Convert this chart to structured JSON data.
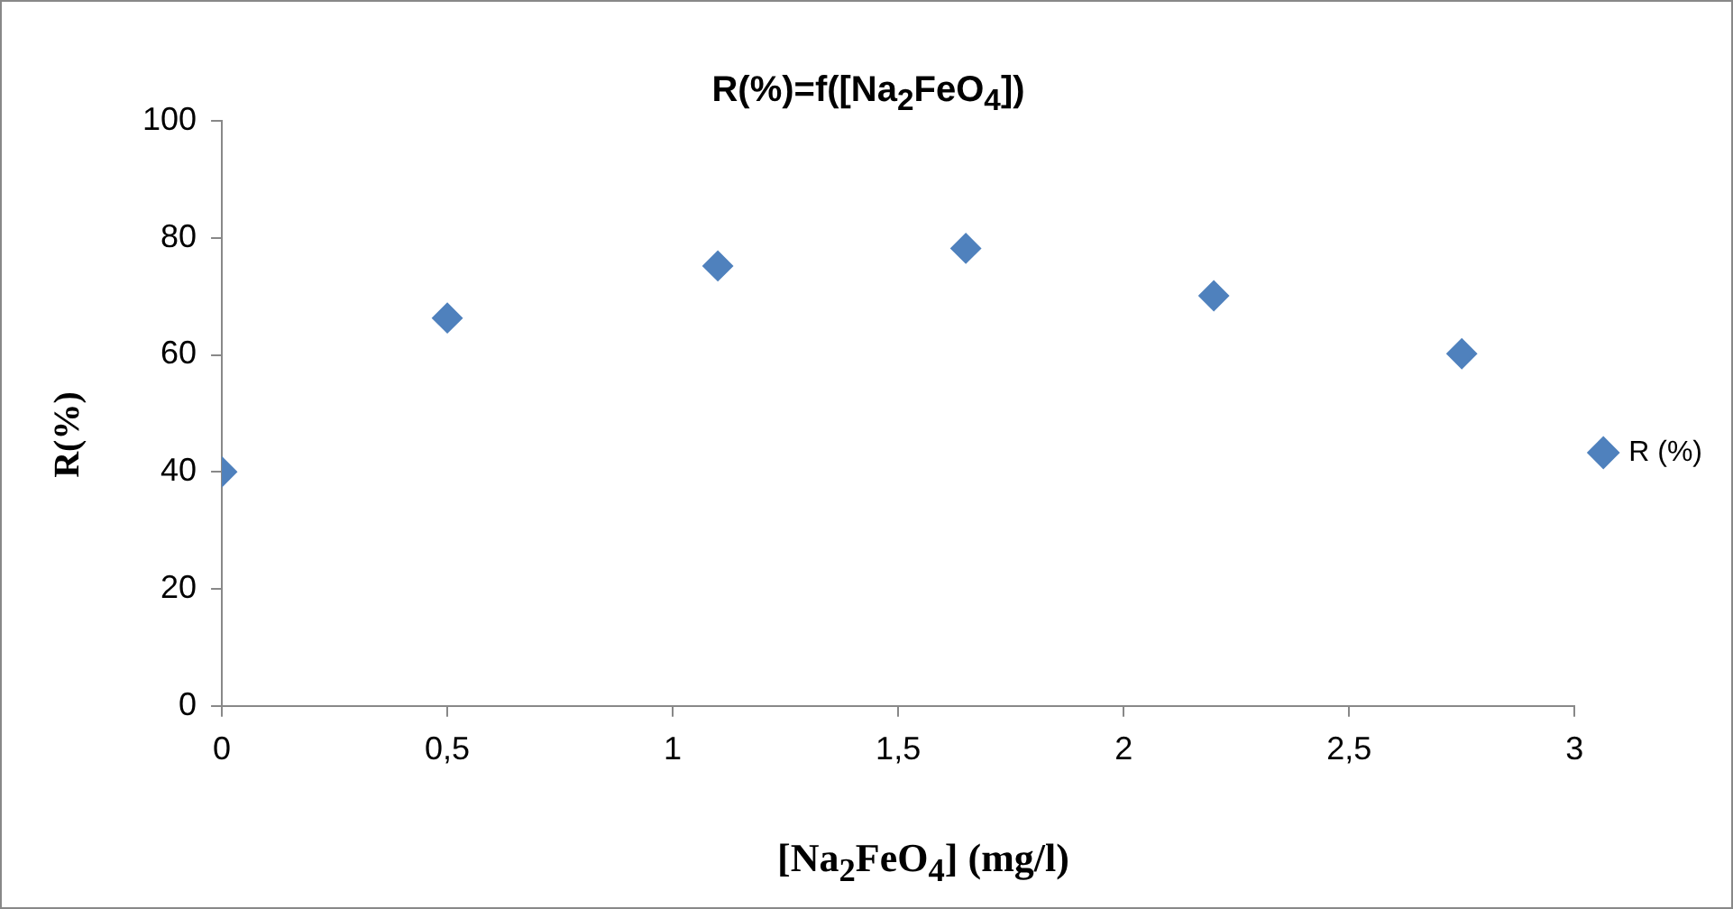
{
  "chart_data": {
    "type": "scatter",
    "title": "R(%)=f([Na$_{2}$FeO$_{4}$])",
    "xlabel": "[Na$_{2}$FeO$_{4}$] (mg/l)",
    "ylabel": "R(%)",
    "x": [
      0,
      0.5,
      1.1,
      1.65,
      2.2,
      2.75
    ],
    "series": [
      {
        "name": "R (%)",
        "color": "#4f81bd",
        "values": [
          40,
          66.3,
          75.2,
          78.2,
          70.1,
          60.2
        ]
      }
    ],
    "xlim": [
      0,
      3
    ],
    "xticks": [
      0,
      {
        "value": 0.5,
        "label": "0,5"
      },
      1,
      {
        "value": 1.5,
        "label": "1,5"
      },
      2,
      {
        "value": 2.5,
        "label": "2,5"
      },
      3
    ],
    "ylim": [
      0,
      100
    ],
    "yticks": [
      0,
      20,
      40,
      60,
      80,
      100
    ],
    "grid": false,
    "legend": "right",
    "marker": "diamond"
  }
}
